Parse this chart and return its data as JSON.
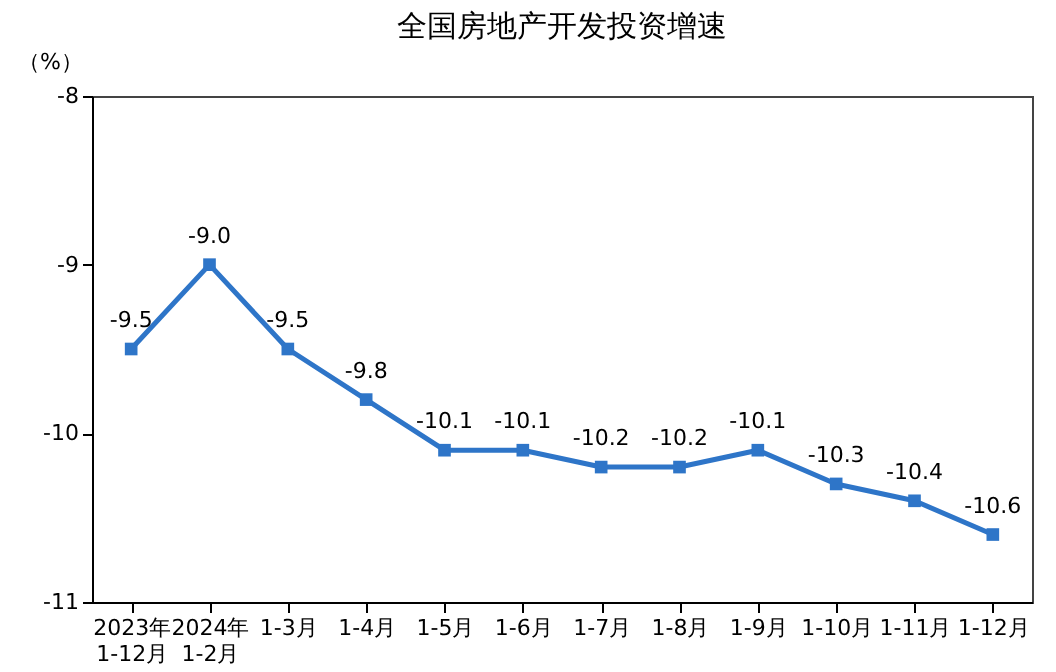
{
  "chart_data": {
    "type": "line",
    "title": "全国房地产开发投资增速",
    "ylabel": "（%）",
    "categories": [
      "2023年\n1-12月",
      "2024年\n1-2月",
      "1-3月",
      "1-4月",
      "1-5月",
      "1-6月",
      "1-7月",
      "1-8月",
      "1-9月",
      "1-10月",
      "1-11月",
      "1-12月"
    ],
    "series": [
      {
        "color": "#2e75c8",
        "values": [
          -9.5,
          -9.0,
          -9.5,
          -9.8,
          -10.1,
          -10.1,
          -10.2,
          -10.2,
          -10.1,
          -10.3,
          -10.4,
          -10.6
        ],
        "value_labels": [
          "-9.5",
          "-9.0",
          "-9.5",
          "-9.8",
          "-10.1",
          "-10.1",
          "-10.2",
          "-10.2",
          "-10.1",
          "-10.3",
          "-10.4",
          "-10.6"
        ]
      }
    ],
    "ylim": [
      -11,
      -8
    ],
    "yticks": [
      -8,
      -9,
      -10,
      -11
    ],
    "grid": false,
    "marker": "square",
    "line_style": "solid"
  }
}
